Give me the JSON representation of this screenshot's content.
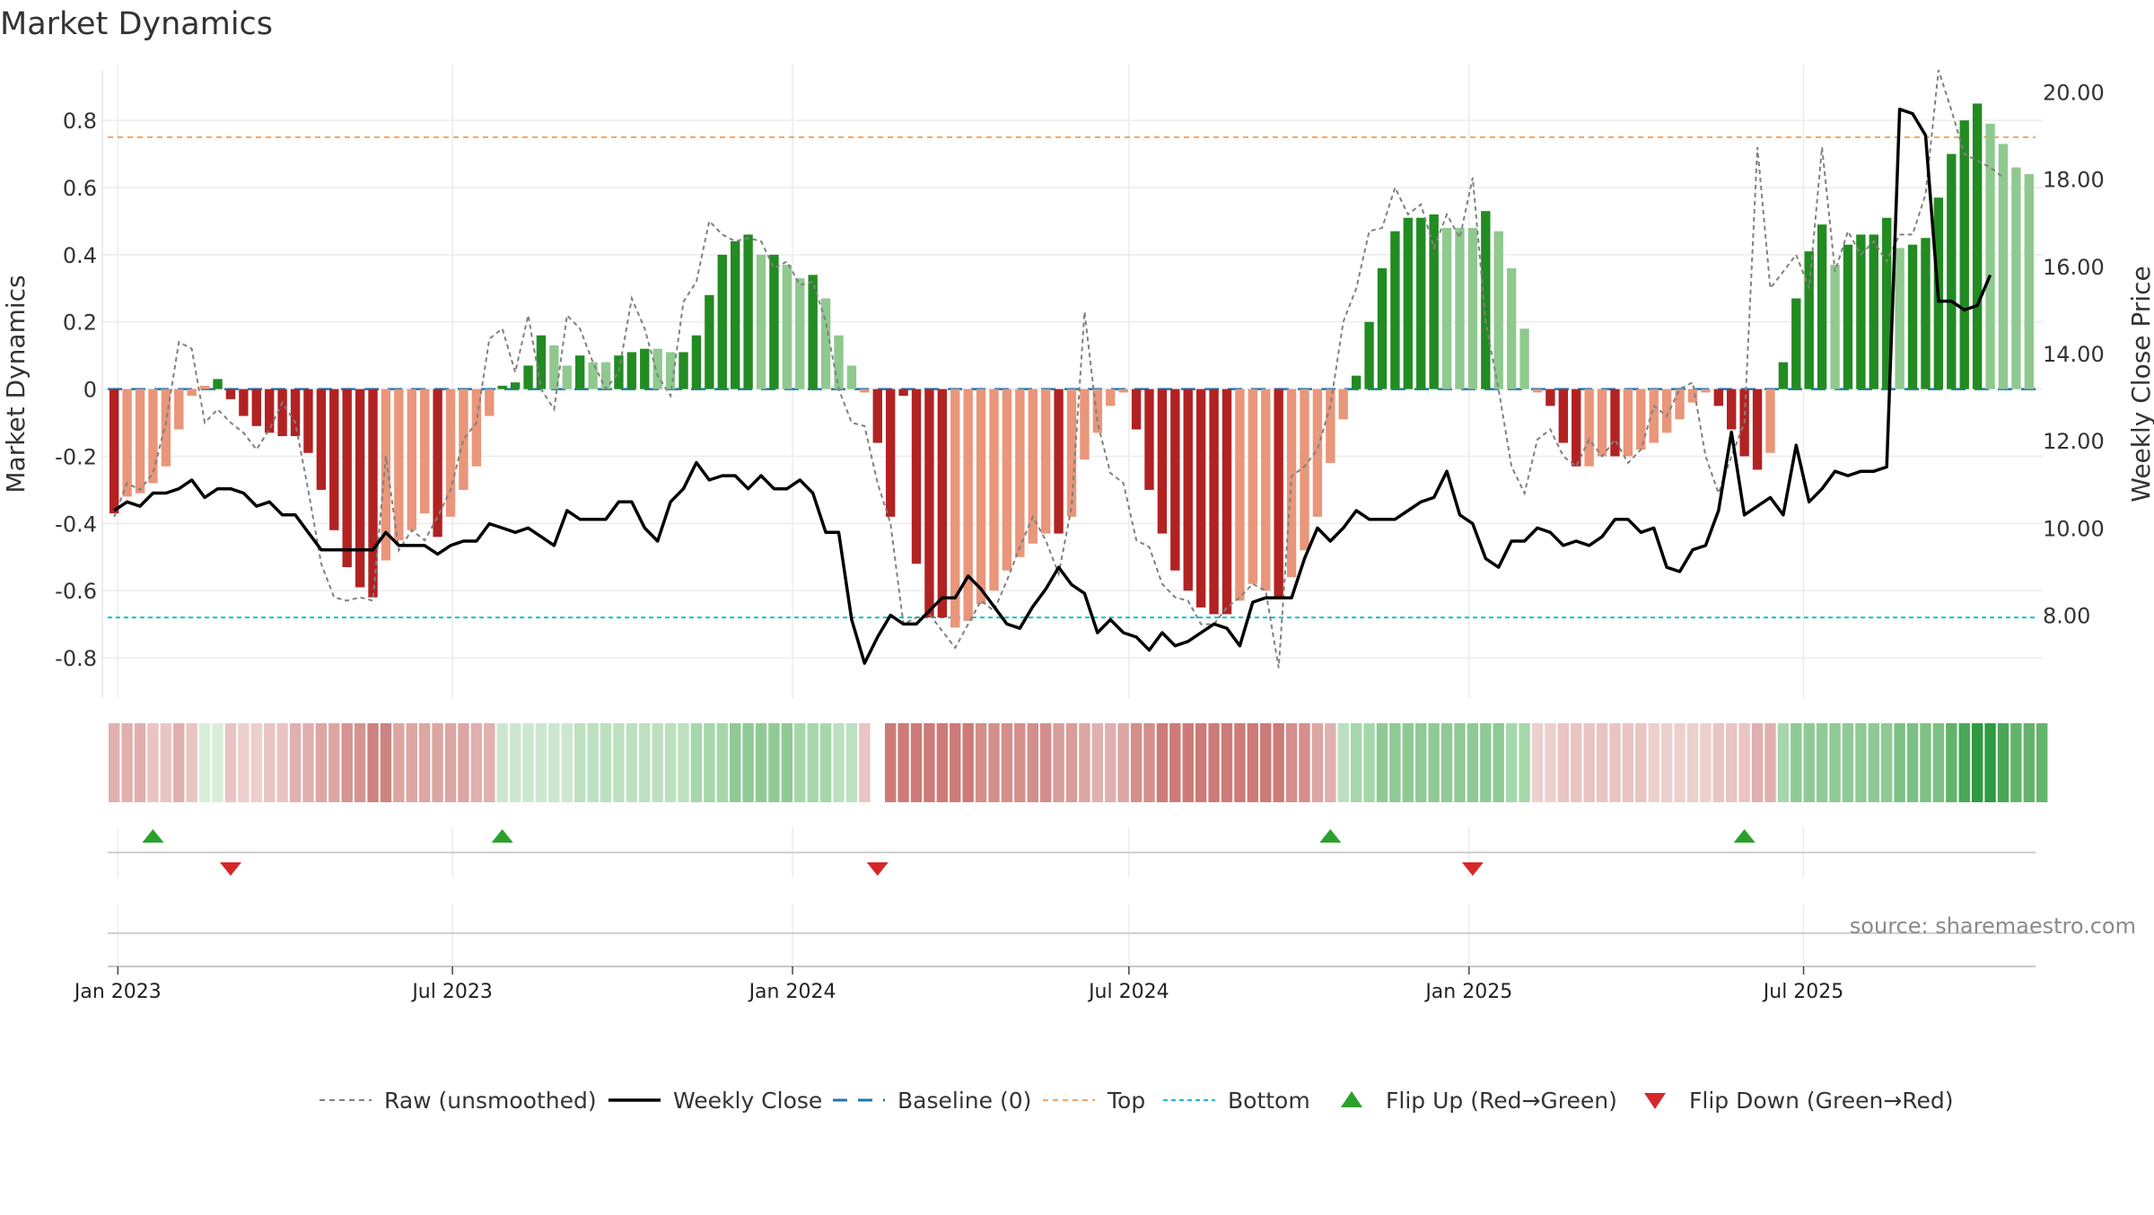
{
  "chart_data": {
    "type": "bar",
    "title": "Market Dynamics",
    "ylabel": "Market Dynamics",
    "y2label": "Weekly Close Price",
    "ylim": [
      -0.92,
      0.95
    ],
    "y2lim": [
      6.1,
      20.5
    ],
    "yticks": [
      "-0.8",
      "-0.6",
      "-0.4",
      "-0.2",
      "0",
      "0.2",
      "0.4",
      "0.6",
      "0.8"
    ],
    "y2ticks": [
      "8.00",
      "10.00",
      "12.00",
      "14.00",
      "16.00",
      "18.00",
      "20.00"
    ],
    "xticks": [
      "Jan 2023",
      "Jul 2023",
      "Jan 2024",
      "Jul 2024",
      "Jan 2025",
      "Jul 2025"
    ],
    "x_start": "2022-12-30",
    "grid": true,
    "top_level": 0.75,
    "bottom_level": -0.68,
    "series": [
      {
        "name": "Market Dynamics",
        "values": [
          -0.37,
          -0.32,
          -0.31,
          -0.28,
          -0.23,
          -0.12,
          -0.02,
          0.01,
          0.03,
          -0.03,
          -0.08,
          -0.11,
          -0.13,
          -0.14,
          -0.14,
          -0.19,
          -0.3,
          -0.42,
          -0.53,
          -0.59,
          -0.62,
          -0.51,
          -0.45,
          -0.42,
          -0.37,
          -0.44,
          -0.38,
          -0.3,
          -0.23,
          -0.08,
          0.01,
          0.02,
          0.07,
          0.16,
          0.13,
          0.07,
          0.1,
          0.08,
          0.08,
          0.1,
          0.11,
          0.12,
          0.12,
          0.11,
          0.11,
          0.16,
          0.28,
          0.4,
          0.44,
          0.46,
          0.4,
          0.4,
          0.37,
          0.33,
          0.34,
          0.27,
          0.16,
          0.07,
          -0.01,
          -0.16,
          -0.38,
          -0.02,
          -0.52,
          -0.68,
          -0.68,
          -0.71,
          -0.69,
          -0.64,
          -0.6,
          -0.54,
          -0.5,
          -0.46,
          -0.43,
          -0.43,
          -0.38,
          -0.21,
          -0.13,
          -0.05,
          -0.01,
          -0.12,
          -0.3,
          -0.43,
          -0.54,
          -0.6,
          -0.65,
          -0.67,
          -0.67,
          -0.63,
          -0.58,
          -0.6,
          -0.62,
          -0.56,
          -0.48,
          -0.38,
          -0.22,
          -0.09,
          0.04,
          0.2,
          0.36,
          0.47,
          0.51,
          0.51,
          0.52,
          0.48,
          0.48,
          0.48,
          0.53,
          0.47,
          0.36,
          0.18,
          -0.01,
          -0.05,
          -0.16,
          -0.23,
          -0.23,
          -0.2,
          -0.2,
          -0.2,
          -0.18,
          -0.16,
          -0.13,
          -0.09,
          -0.04,
          -0.01,
          -0.05,
          -0.12,
          -0.2,
          -0.24,
          -0.19,
          0.08,
          0.27,
          0.41,
          0.49,
          0.37,
          0.43,
          0.46,
          0.46,
          0.51,
          0.42,
          0.43,
          0.45,
          0.57,
          0.7,
          0.8,
          0.85,
          0.79,
          0.73,
          0.66,
          0.64
        ],
        "colors": [
          "#b22222",
          "#e9967a",
          "#e9967a",
          "#e9967a",
          "#e9967a",
          "#e9967a",
          "#e9967a",
          "#e9967a",
          "#228b22",
          "#b22222",
          "#b22222",
          "#b22222",
          "#b22222",
          "#b22222",
          "#b22222",
          "#b22222",
          "#b22222",
          "#b22222",
          "#b22222",
          "#b22222",
          "#b22222",
          "#e9967a",
          "#e9967a",
          "#e9967a",
          "#e9967a",
          "#b22222",
          "#e9967a",
          "#e9967a",
          "#e9967a",
          "#e9967a",
          "#228b22",
          "#228b22",
          "#228b22",
          "#228b22",
          "#8fc98f",
          "#8fc98f",
          "#228b22",
          "#8fc98f",
          "#8fc98f",
          "#228b22",
          "#228b22",
          "#228b22",
          "#8fc98f",
          "#8fc98f",
          "#228b22",
          "#228b22",
          "#228b22",
          "#228b22",
          "#228b22",
          "#228b22",
          "#8fc98f",
          "#228b22",
          "#8fc98f",
          "#8fc98f",
          "#228b22",
          "#8fc98f",
          "#8fc98f",
          "#8fc98f",
          "#e9967a",
          "#b22222",
          "#b22222",
          "#b22222",
          "#b22222",
          "#b22222",
          "#b22222",
          "#e9967a",
          "#e9967a",
          "#e9967a",
          "#e9967a",
          "#e9967a",
          "#e9967a",
          "#e9967a",
          "#e9967a",
          "#b22222",
          "#e9967a",
          "#e9967a",
          "#e9967a",
          "#e9967a",
          "#e9967a",
          "#b22222",
          "#b22222",
          "#b22222",
          "#b22222",
          "#b22222",
          "#b22222",
          "#b22222",
          "#b22222",
          "#e9967a",
          "#e9967a",
          "#e9967a",
          "#b22222",
          "#e9967a",
          "#e9967a",
          "#e9967a",
          "#e9967a",
          "#e9967a",
          "#228b22",
          "#228b22",
          "#228b22",
          "#228b22",
          "#228b22",
          "#228b22",
          "#228b22",
          "#8fc98f",
          "#8fc98f",
          "#8fc98f",
          "#228b22",
          "#8fc98f",
          "#8fc98f",
          "#8fc98f",
          "#e9967a",
          "#b22222",
          "#b22222",
          "#b22222",
          "#e9967a",
          "#e9967a",
          "#b22222",
          "#e9967a",
          "#e9967a",
          "#e9967a",
          "#e9967a",
          "#e9967a",
          "#e9967a",
          "#e9967a",
          "#b22222",
          "#b22222",
          "#b22222",
          "#b22222",
          "#e9967a",
          "#228b22",
          "#228b22",
          "#228b22",
          "#228b22",
          "#8fc98f",
          "#228b22",
          "#228b22",
          "#228b22",
          "#228b22",
          "#8fc98f",
          "#228b22",
          "#228b22",
          "#228b22",
          "#228b22",
          "#228b22",
          "#228b22",
          "#8fc98f",
          "#8fc98f",
          "#8fc98f",
          "#8fc98f"
        ]
      },
      {
        "name": "Raw (unsmoothed)",
        "values": [
          -0.38,
          -0.28,
          -0.3,
          -0.25,
          -0.1,
          0.14,
          0.12,
          -0.1,
          -0.06,
          -0.1,
          -0.13,
          -0.18,
          -0.12,
          -0.04,
          -0.1,
          -0.3,
          -0.52,
          -0.62,
          -0.63,
          -0.62,
          -0.63,
          -0.2,
          -0.48,
          -0.42,
          -0.45,
          -0.38,
          -0.3,
          -0.15,
          -0.1,
          0.15,
          0.18,
          0.05,
          0.22,
          0.0,
          -0.06,
          0.22,
          0.18,
          0.08,
          0.0,
          0.05,
          0.27,
          0.18,
          0.04,
          -0.02,
          0.26,
          0.32,
          0.5,
          0.46,
          0.44,
          0.45,
          0.44,
          0.36,
          0.38,
          0.31,
          0.32,
          0.2,
          0.0,
          -0.1,
          -0.11,
          -0.28,
          -0.4,
          -0.7,
          -0.68,
          -0.67,
          -0.72,
          -0.77,
          -0.7,
          -0.63,
          -0.66,
          -0.57,
          -0.47,
          -0.38,
          -0.45,
          -0.55,
          -0.35,
          0.23,
          -0.1,
          -0.25,
          -0.28,
          -0.45,
          -0.47,
          -0.58,
          -0.62,
          -0.63,
          -0.7,
          -0.7,
          -0.65,
          -0.62,
          -0.58,
          -0.6,
          -0.83,
          -0.26,
          -0.23,
          -0.18,
          -0.05,
          0.2,
          0.3,
          0.47,
          0.48,
          0.6,
          0.52,
          0.55,
          0.42,
          0.52,
          0.45,
          0.63,
          0.2,
          0.0,
          -0.23,
          -0.31,
          -0.15,
          -0.12,
          -0.2,
          -0.23,
          -0.15,
          -0.2,
          -0.15,
          -0.22,
          -0.18,
          -0.05,
          -0.08,
          0.0,
          0.02,
          -0.2,
          -0.31,
          -0.2,
          -0.1,
          0.72,
          0.3,
          0.35,
          0.4,
          0.3,
          0.72,
          0.35,
          0.47,
          0.4,
          0.44,
          0.38,
          0.46,
          0.46,
          0.58,
          0.95,
          0.83,
          0.7,
          0.68,
          0.66,
          0.63
        ]
      },
      {
        "name": "Weekly Close",
        "values": [
          10.4,
          10.6,
          10.5,
          10.8,
          10.8,
          10.9,
          11.1,
          10.7,
          10.9,
          10.9,
          10.8,
          10.5,
          10.6,
          10.3,
          10.3,
          9.9,
          9.5,
          9.5,
          9.5,
          9.5,
          9.5,
          9.9,
          9.6,
          9.6,
          9.6,
          9.4,
          9.6,
          9.7,
          9.7,
          10.1,
          10.0,
          9.9,
          10.0,
          9.8,
          9.6,
          10.4,
          10.2,
          10.2,
          10.2,
          10.6,
          10.6,
          10.0,
          9.7,
          10.6,
          10.9,
          11.5,
          11.1,
          11.2,
          11.2,
          10.9,
          11.2,
          10.9,
          10.9,
          11.1,
          10.8,
          9.9,
          9.9,
          7.9,
          6.9,
          7.5,
          8.0,
          7.8,
          7.8,
          8.1,
          8.4,
          8.4,
          8.9,
          8.6,
          8.2,
          7.8,
          7.7,
          8.2,
          8.6,
          9.1,
          8.7,
          8.5,
          7.6,
          7.9,
          7.6,
          7.5,
          7.2,
          7.6,
          7.3,
          7.4,
          7.6,
          7.8,
          7.7,
          7.3,
          8.3,
          8.4,
          8.4,
          8.4,
          9.3,
          10.0,
          9.7,
          10.0,
          10.4,
          10.2,
          10.2,
          10.2,
          10.4,
          10.6,
          10.7,
          11.3,
          10.3,
          10.1,
          9.3,
          9.1,
          9.7,
          9.7,
          10.0,
          9.9,
          9.6,
          9.7,
          9.6,
          9.8,
          10.2,
          10.2,
          9.9,
          10.0,
          9.1,
          9.0,
          9.5,
          9.6,
          10.4,
          12.2,
          10.3,
          10.5,
          10.7,
          10.3,
          11.9,
          10.6,
          10.9,
          11.3,
          11.2,
          11.3,
          11.3,
          11.4,
          19.6,
          19.5,
          19.0,
          15.2,
          15.2,
          15.0,
          15.1,
          15.8
        ]
      }
    ],
    "flip_up_weeks": [
      3,
      30,
      94,
      126
    ],
    "flip_down_weeks": [
      9,
      59,
      105
    ],
    "regime_strip": {
      "gap_index": 59,
      "colors": [
        "#e0b0ae",
        "#e0b0ae",
        "#e0b0ae",
        "#e8c5c2",
        "#e8c5c2",
        "#e0b0ae",
        "#e8c5c2",
        "#d9eeda",
        "#d9eeda",
        "#e8c5c2",
        "#ecd0cd",
        "#ecd0cd",
        "#e8c5c2",
        "#e8c5c2",
        "#e0b0ae",
        "#e0b0ae",
        "#dca6a3",
        "#dca6a3",
        "#d49491",
        "#d49491",
        "#cc8381",
        "#cc8381",
        "#dca6a3",
        "#dca6a3",
        "#dca6a3",
        "#dca6a3",
        "#dca6a3",
        "#dca6a3",
        "#e0b0ae",
        "#e0b0ae",
        "#cde7cf",
        "#cde7cf",
        "#cde7cf",
        "#cde7cf",
        "#cde7cf",
        "#cde7cf",
        "#bde0c0",
        "#bde0c0",
        "#bde0c0",
        "#bde0c0",
        "#bde0c0",
        "#bde0c0",
        "#bde0c0",
        "#bde0c0",
        "#bde0c0",
        "#a6d7aa",
        "#a6d7aa",
        "#a6d7aa",
        "#8fca95",
        "#8fca95",
        "#8fca95",
        "#8fca95",
        "#8fca95",
        "#a6d7aa",
        "#a6d7aa",
        "#a6d7aa",
        "#bde0c0",
        "#bde0c0",
        "#e8c5c2",
        "#e0b0ae",
        "#cc7b78",
        "#cc7b78",
        "#cc7b78",
        "#cc7b78",
        "#cc7b78",
        "#cc7b78",
        "#cc7b78",
        "#d48e8b",
        "#d48e8b",
        "#d48e8b",
        "#d48e8b",
        "#d48e8b",
        "#d48e8b",
        "#d99d9a",
        "#d99d9a",
        "#dca6a3",
        "#e0b0ae",
        "#e0b0ae",
        "#dca6a3",
        "#d48e8b",
        "#d48e8b",
        "#cc7b78",
        "#cc7b78",
        "#cc7b78",
        "#cc7b78",
        "#cc7b78",
        "#cc7b78",
        "#cc7b78",
        "#cc7b78",
        "#cc7b78",
        "#cc7b78",
        "#d48e8b",
        "#d48e8b",
        "#dca6a3",
        "#e0b0ae",
        "#bde0c0",
        "#a6d7aa",
        "#a6d7aa",
        "#8fca95",
        "#8fca95",
        "#8fca95",
        "#8fca95",
        "#8fca95",
        "#8fca95",
        "#8fca95",
        "#8fca95",
        "#8fca95",
        "#8fca95",
        "#a6d7aa",
        "#a6d7aa",
        "#ecd0cd",
        "#ecd0cd",
        "#e8c5c2",
        "#e8c5c2",
        "#e8c5c2",
        "#e8c5c2",
        "#e8c5c2",
        "#e8c5c2",
        "#e8c5c2",
        "#ecd0cd",
        "#ecd0cd",
        "#ecd0cd",
        "#ecd0cd",
        "#ecd0cd",
        "#e8c5c2",
        "#e8c5c2",
        "#e8c5c2",
        "#e0b0ae",
        "#e0b0ae",
        "#a6d7aa",
        "#8fca95",
        "#8fca95",
        "#8fca95",
        "#8fca95",
        "#8fca95",
        "#8fca95",
        "#8fca95",
        "#8fca95",
        "#7cc183",
        "#7cc183",
        "#7cc183",
        "#7cc183",
        "#62b46b",
        "#4aa756",
        "#2f9a40",
        "#2f9a40",
        "#4aa756",
        "#62b46b",
        "#62b46b",
        "#62b46b"
      ]
    },
    "legend": {
      "placement": "bottom-center",
      "entries": [
        "Raw (unsmoothed)",
        "Weekly Close",
        "Baseline (0)",
        "Top",
        "Bottom",
        "Flip Up (Red→Green)",
        "Flip Down (Green→Red)"
      ]
    },
    "annotation": "source: sharemaestro.com"
  },
  "colors": {
    "strong_red": "#b22222",
    "light_red": "#e9967a",
    "strong_green": "#228b22",
    "light_green": "#8fc98f",
    "baseline": "#1f77b4",
    "top_line": "#f4a460",
    "bottom_line": "#17becf",
    "raw_line": "#808080",
    "price_line": "#000000",
    "flip_up": "#2ca02c",
    "flip_down": "#d62728"
  }
}
